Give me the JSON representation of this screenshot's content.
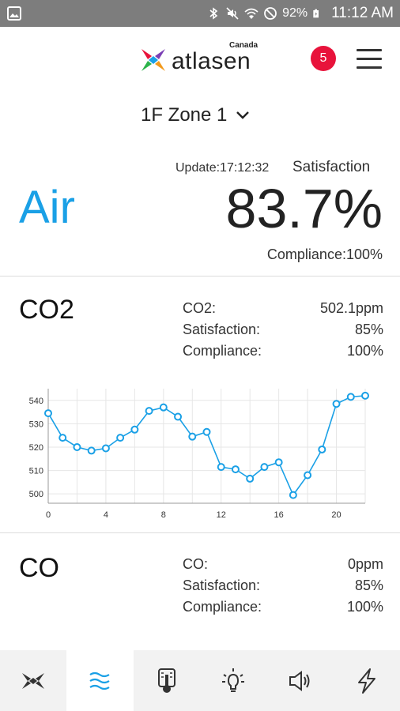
{
  "status_bar": {
    "battery_percent": "92%",
    "time": "11:12 AM",
    "icons": [
      "gallery-icon",
      "bluetooth-icon",
      "mute-icon",
      "wifi-icon",
      "blocked-icon",
      "battery-charging-icon"
    ]
  },
  "header": {
    "logo_text": "atlasen",
    "logo_region": "Canada",
    "notification_count": "5",
    "colors": {
      "badge": "#e8133b",
      "accent": "#1aa0e6"
    }
  },
  "zone_selector": {
    "label": "1F Zone 1"
  },
  "air": {
    "title": "Air",
    "update_label": "Update:17:12:32",
    "satisfaction_label": "Satisfaction",
    "satisfaction_value": "83.7%",
    "compliance": "Compliance:100%"
  },
  "co2": {
    "title": "CO2",
    "rows": [
      {
        "label": "CO2:",
        "value": "502.1ppm"
      },
      {
        "label": "Satisfaction:",
        "value": "85%"
      },
      {
        "label": "Compliance:",
        "value": "100%"
      }
    ]
  },
  "chart_data": {
    "type": "line",
    "x": [
      0,
      1,
      2,
      3,
      4,
      5,
      6,
      7,
      8,
      9,
      10,
      11,
      12,
      13,
      14,
      15,
      16,
      17,
      18,
      19,
      20,
      21,
      22
    ],
    "series": [
      {
        "values": [
          534.5,
          524,
          520,
          518.5,
          519.5,
          524,
          527.5,
          535.5,
          537,
          533,
          524.5,
          526.5,
          511.5,
          510.5,
          506.5,
          511.5,
          513.5,
          499.5,
          508,
          519,
          538.5,
          541.5,
          542
        ]
      }
    ],
    "x_ticks": [
      "0",
      "4",
      "8",
      "12",
      "16",
      "20"
    ],
    "y_ticks": [
      "500",
      "510",
      "520",
      "530",
      "540"
    ],
    "xlim": [
      0,
      22
    ],
    "ylim": [
      496,
      545
    ],
    "grid": true,
    "color": "#1aa0e6"
  },
  "co": {
    "title": "CO",
    "rows": [
      {
        "label": "CO:",
        "value": "0ppm"
      },
      {
        "label": "Satisfaction:",
        "value": "85%"
      },
      {
        "label": "Compliance:",
        "value": "100%"
      }
    ]
  },
  "bottom_nav": {
    "items": [
      "home-logo-icon",
      "air-icon",
      "thermometer-icon",
      "light-bulb-icon",
      "speaker-icon",
      "power-icon"
    ],
    "active": "air-icon"
  }
}
